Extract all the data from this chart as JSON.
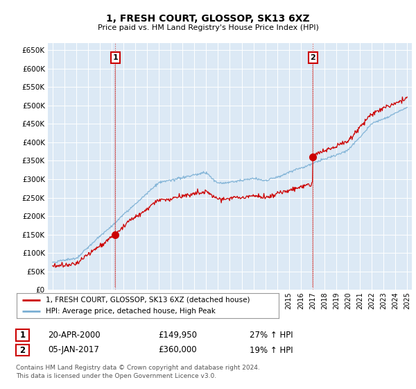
{
  "title": "1, FRESH COURT, GLOSSOP, SK13 6XZ",
  "subtitle": "Price paid vs. HM Land Registry's House Price Index (HPI)",
  "ylim": [
    0,
    670000
  ],
  "yticks": [
    0,
    50000,
    100000,
    150000,
    200000,
    250000,
    300000,
    350000,
    400000,
    450000,
    500000,
    550000,
    600000,
    650000
  ],
  "chart_bg": "#dce9f5",
  "background_color": "#ffffff",
  "grid_color": "#ffffff",
  "line1_color": "#cc0000",
  "line2_color": "#7aafd4",
  "vline1_x": 2000.3,
  "vline2_x": 2017.02,
  "sale1_x": 2000.3,
  "sale1_y": 149950,
  "sale2_x": 2017.02,
  "sale2_y": 360000,
  "legend_label1": "1, FRESH COURT, GLOSSOP, SK13 6XZ (detached house)",
  "legend_label2": "HPI: Average price, detached house, High Peak",
  "table_row1": [
    "1",
    "20-APR-2000",
    "£149,950",
    "27% ↑ HPI"
  ],
  "table_row2": [
    "2",
    "05-JAN-2017",
    "£360,000",
    "19% ↑ HPI"
  ],
  "footnote": "Contains HM Land Registry data © Crown copyright and database right 2024.\nThis data is licensed under the Open Government Licence v3.0.",
  "xmin": 1994.6,
  "xmax": 2025.4,
  "hpi_seed": 12,
  "pp_seed": 99
}
